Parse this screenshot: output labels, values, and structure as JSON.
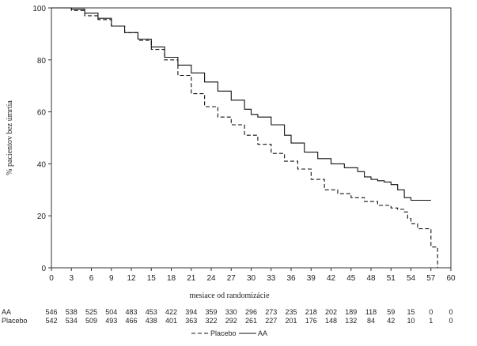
{
  "chart_data": {
    "type": "line",
    "ylabel": "% pacientov bez úmrtia",
    "xlabel": "mesiace od randomizácie",
    "xlim": [
      0,
      60
    ],
    "ylim": [
      0,
      100
    ],
    "xticks": [
      "0",
      "3",
      "6",
      "9",
      "12",
      "15",
      "18",
      "21",
      "24",
      "27",
      "30",
      "33",
      "36",
      "39",
      "42",
      "45",
      "48",
      "51",
      "54",
      "57",
      "60"
    ],
    "yticks": [
      "0",
      "20",
      "40",
      "60",
      "80",
      "100"
    ],
    "grid": false,
    "legend_position": "bottom-center",
    "series": [
      {
        "name": "AA",
        "style": "solid",
        "color": "#111111",
        "x": [
          0,
          2,
          3,
          5,
          7,
          9,
          11,
          13,
          15,
          17,
          19,
          21,
          23,
          25,
          27,
          29,
          30,
          31,
          33,
          35,
          36,
          38,
          40,
          42,
          44,
          46,
          47,
          48,
          49,
          50,
          51,
          52,
          53,
          54,
          55,
          56,
          57
        ],
        "y": [
          100,
          100,
          99.5,
          98,
          96,
          93,
          90.5,
          88,
          85,
          81,
          78,
          75,
          71.5,
          68,
          64.5,
          61,
          59,
          58,
          55,
          51,
          48,
          44.5,
          42,
          40,
          38.5,
          37,
          35,
          34,
          33.5,
          33,
          32,
          30,
          27,
          26,
          26,
          26,
          26
        ]
      },
      {
        "name": "Placebo",
        "style": "dashed",
        "color": "#111111",
        "x": [
          0,
          2,
          3,
          5,
          7,
          9,
          11,
          13,
          15,
          17,
          19,
          21,
          23,
          25,
          27,
          29,
          31,
          33,
          35,
          37,
          39,
          41,
          43,
          45,
          47,
          49,
          51,
          52,
          53,
          53.5,
          54,
          55,
          56,
          57,
          57.5,
          58
        ],
        "y": [
          100,
          100,
          99,
          97,
          95.5,
          93,
          90.5,
          87.5,
          84,
          80,
          74,
          67,
          62,
          58,
          55,
          51,
          47.5,
          44,
          41,
          38,
          34,
          30,
          28.5,
          27,
          25.5,
          24,
          23,
          22.5,
          21.5,
          19,
          17,
          15,
          15,
          8,
          8,
          0
        ]
      }
    ],
    "risk_table": {
      "timepoints": [
        "0",
        "3",
        "6",
        "9",
        "12",
        "15",
        "18",
        "21",
        "24",
        "27",
        "30",
        "33",
        "36",
        "39",
        "42",
        "45",
        "48",
        "51",
        "54",
        "57",
        "60"
      ],
      "rows": [
        {
          "label": "AA",
          "values": [
            "546",
            "538",
            "525",
            "504",
            "483",
            "453",
            "422",
            "394",
            "359",
            "330",
            "296",
            "273",
            "235",
            "218",
            "202",
            "189",
            "118",
            "59",
            "15",
            "0",
            "0"
          ]
        },
        {
          "label": "Placebo",
          "values": [
            "542",
            "534",
            "509",
            "493",
            "466",
            "438",
            "401",
            "363",
            "322",
            "292",
            "261",
            "227",
            "201",
            "176",
            "148",
            "132",
            "84",
            "42",
            "10",
            "1",
            "0"
          ]
        }
      ]
    },
    "legend": [
      {
        "label": "Placebo",
        "style": "dashed"
      },
      {
        "label": "AA",
        "style": "solid"
      }
    ]
  }
}
